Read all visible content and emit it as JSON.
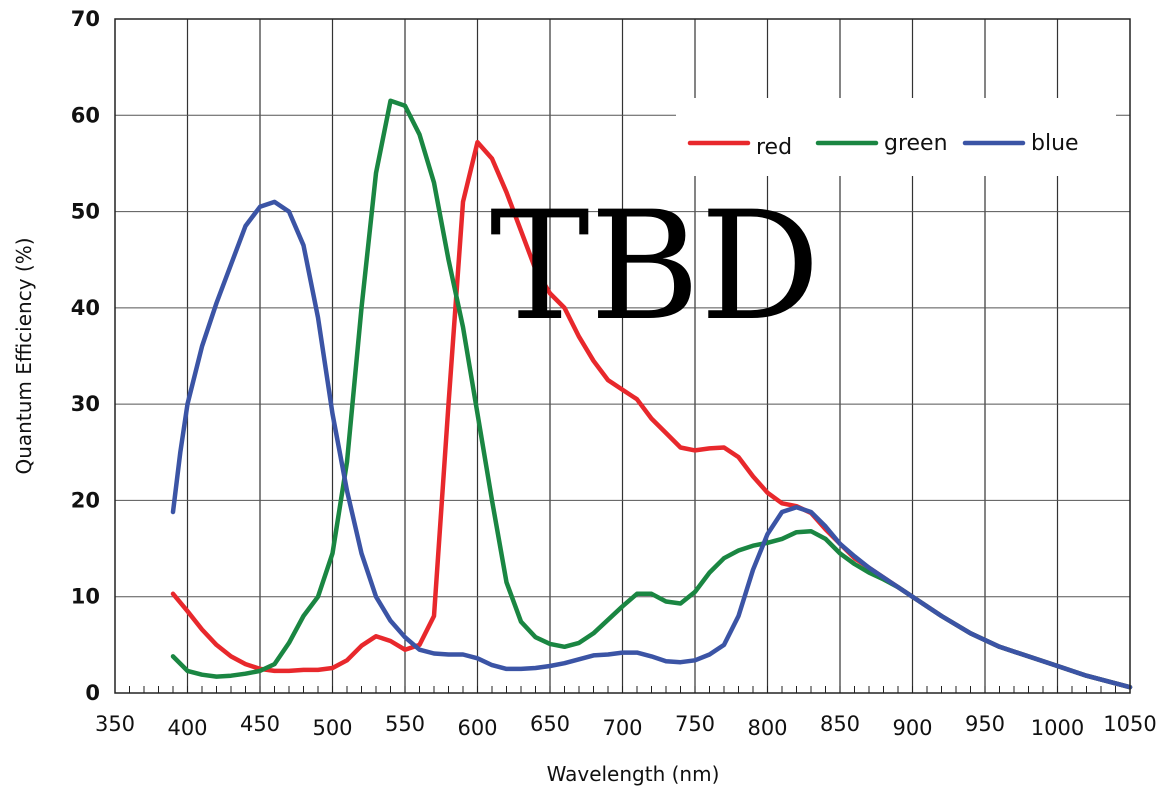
{
  "chart_data": {
    "type": "line",
    "xlabel": "Wavelength (nm)",
    "ylabel": "Quantum Efficiency (%)",
    "xlim": [
      350,
      1050
    ],
    "ylim": [
      0,
      70
    ],
    "x_ticks": [
      350,
      400,
      450,
      500,
      550,
      600,
      650,
      700,
      750,
      800,
      850,
      900,
      950,
      1000,
      1050
    ],
    "y_ticks": [
      0,
      10,
      20,
      30,
      40,
      50,
      60,
      70
    ],
    "grid": true,
    "legend_position": "top-right",
    "annotation": "TBD",
    "series": [
      {
        "name": "red",
        "color": "#e8282c",
        "points": [
          [
            390,
            10.3
          ],
          [
            400,
            8.5
          ],
          [
            410,
            6.6
          ],
          [
            420,
            5
          ],
          [
            430,
            3.8
          ],
          [
            440,
            3
          ],
          [
            450,
            2.5
          ],
          [
            460,
            2.3
          ],
          [
            470,
            2.3
          ],
          [
            480,
            2.4
          ],
          [
            490,
            2.4
          ],
          [
            500,
            2.6
          ],
          [
            510,
            3.4
          ],
          [
            520,
            4.9
          ],
          [
            530,
            5.9
          ],
          [
            540,
            5.4
          ],
          [
            550,
            4.5
          ],
          [
            560,
            5
          ],
          [
            570,
            8
          ],
          [
            580,
            30
          ],
          [
            590,
            51
          ],
          [
            600,
            57.2
          ],
          [
            610,
            55.5
          ],
          [
            620,
            52
          ],
          [
            630,
            48
          ],
          [
            640,
            44
          ],
          [
            650,
            41.5
          ],
          [
            660,
            40
          ],
          [
            670,
            37
          ],
          [
            680,
            34.5
          ],
          [
            690,
            32.5
          ],
          [
            700,
            31.5
          ],
          [
            710,
            30.5
          ],
          [
            720,
            28.5
          ],
          [
            730,
            27
          ],
          [
            740,
            25.5
          ],
          [
            750,
            25.2
          ],
          [
            760,
            25.4
          ],
          [
            770,
            25.5
          ],
          [
            780,
            24.5
          ],
          [
            790,
            22.5
          ],
          [
            800,
            20.8
          ],
          [
            810,
            19.7
          ],
          [
            820,
            19.4
          ],
          [
            830,
            18.7
          ],
          [
            840,
            17
          ],
          [
            850,
            15.5
          ],
          [
            860,
            14
          ],
          [
            870,
            13
          ],
          [
            880,
            12
          ],
          [
            890,
            11
          ],
          [
            900,
            10
          ],
          [
            920,
            8
          ],
          [
            940,
            6.2
          ],
          [
            960,
            4.8
          ],
          [
            980,
            3.8
          ],
          [
            1000,
            2.8
          ],
          [
            1020,
            1.8
          ],
          [
            1050,
            0.6
          ]
        ]
      },
      {
        "name": "green",
        "color": "#1a8642",
        "points": [
          [
            390,
            3.8
          ],
          [
            400,
            2.3
          ],
          [
            410,
            1.9
          ],
          [
            420,
            1.7
          ],
          [
            430,
            1.8
          ],
          [
            440,
            2
          ],
          [
            450,
            2.3
          ],
          [
            460,
            3
          ],
          [
            470,
            5.2
          ],
          [
            480,
            8
          ],
          [
            490,
            10
          ],
          [
            500,
            14.5
          ],
          [
            510,
            24
          ],
          [
            520,
            40
          ],
          [
            530,
            54
          ],
          [
            540,
            61.5
          ],
          [
            550,
            61
          ],
          [
            560,
            58
          ],
          [
            570,
            53
          ],
          [
            580,
            45
          ],
          [
            590,
            38
          ],
          [
            600,
            29
          ],
          [
            610,
            20
          ],
          [
            620,
            11.5
          ],
          [
            630,
            7.4
          ],
          [
            640,
            5.8
          ],
          [
            650,
            5.1
          ],
          [
            660,
            4.8
          ],
          [
            670,
            5.2
          ],
          [
            680,
            6.2
          ],
          [
            690,
            7.6
          ],
          [
            700,
            9
          ],
          [
            710,
            10.3
          ],
          [
            720,
            10.3
          ],
          [
            730,
            9.5
          ],
          [
            740,
            9.3
          ],
          [
            750,
            10.5
          ],
          [
            760,
            12.5
          ],
          [
            770,
            14
          ],
          [
            780,
            14.8
          ],
          [
            790,
            15.3
          ],
          [
            800,
            15.6
          ],
          [
            810,
            16
          ],
          [
            820,
            16.7
          ],
          [
            830,
            16.8
          ],
          [
            840,
            16
          ],
          [
            850,
            14.5
          ],
          [
            860,
            13.4
          ],
          [
            870,
            12.5
          ],
          [
            880,
            11.8
          ],
          [
            890,
            11
          ],
          [
            900,
            10
          ],
          [
            920,
            8
          ],
          [
            940,
            6.2
          ],
          [
            960,
            4.8
          ],
          [
            980,
            3.8
          ],
          [
            1000,
            2.8
          ],
          [
            1020,
            1.8
          ],
          [
            1050,
            0.6
          ]
        ]
      },
      {
        "name": "blue",
        "color": "#3b54a5",
        "points": [
          [
            390,
            18.8
          ],
          [
            395,
            25
          ],
          [
            400,
            30
          ],
          [
            410,
            36
          ],
          [
            420,
            40.5
          ],
          [
            430,
            44.5
          ],
          [
            440,
            48.5
          ],
          [
            450,
            50.5
          ],
          [
            460,
            51
          ],
          [
            470,
            50
          ],
          [
            480,
            46.5
          ],
          [
            490,
            39
          ],
          [
            500,
            29
          ],
          [
            510,
            21
          ],
          [
            520,
            14.5
          ],
          [
            530,
            10
          ],
          [
            540,
            7.5
          ],
          [
            550,
            5.8
          ],
          [
            560,
            4.5
          ],
          [
            570,
            4.1
          ],
          [
            580,
            4
          ],
          [
            590,
            4
          ],
          [
            600,
            3.6
          ],
          [
            610,
            2.9
          ],
          [
            620,
            2.5
          ],
          [
            630,
            2.5
          ],
          [
            640,
            2.6
          ],
          [
            650,
            2.8
          ],
          [
            660,
            3.1
          ],
          [
            670,
            3.5
          ],
          [
            680,
            3.9
          ],
          [
            690,
            4
          ],
          [
            700,
            4.2
          ],
          [
            710,
            4.2
          ],
          [
            720,
            3.8
          ],
          [
            730,
            3.3
          ],
          [
            740,
            3.2
          ],
          [
            750,
            3.4
          ],
          [
            760,
            4
          ],
          [
            770,
            5
          ],
          [
            780,
            8
          ],
          [
            790,
            12.8
          ],
          [
            800,
            16.5
          ],
          [
            810,
            18.8
          ],
          [
            820,
            19.3
          ],
          [
            830,
            18.8
          ],
          [
            840,
            17.3
          ],
          [
            850,
            15.5
          ],
          [
            860,
            14.2
          ],
          [
            870,
            13
          ],
          [
            880,
            12
          ],
          [
            890,
            11
          ],
          [
            900,
            10
          ],
          [
            920,
            8
          ],
          [
            940,
            6.2
          ],
          [
            960,
            4.8
          ],
          [
            980,
            3.8
          ],
          [
            1000,
            2.8
          ],
          [
            1020,
            1.8
          ],
          [
            1050,
            0.6
          ]
        ]
      }
    ]
  }
}
